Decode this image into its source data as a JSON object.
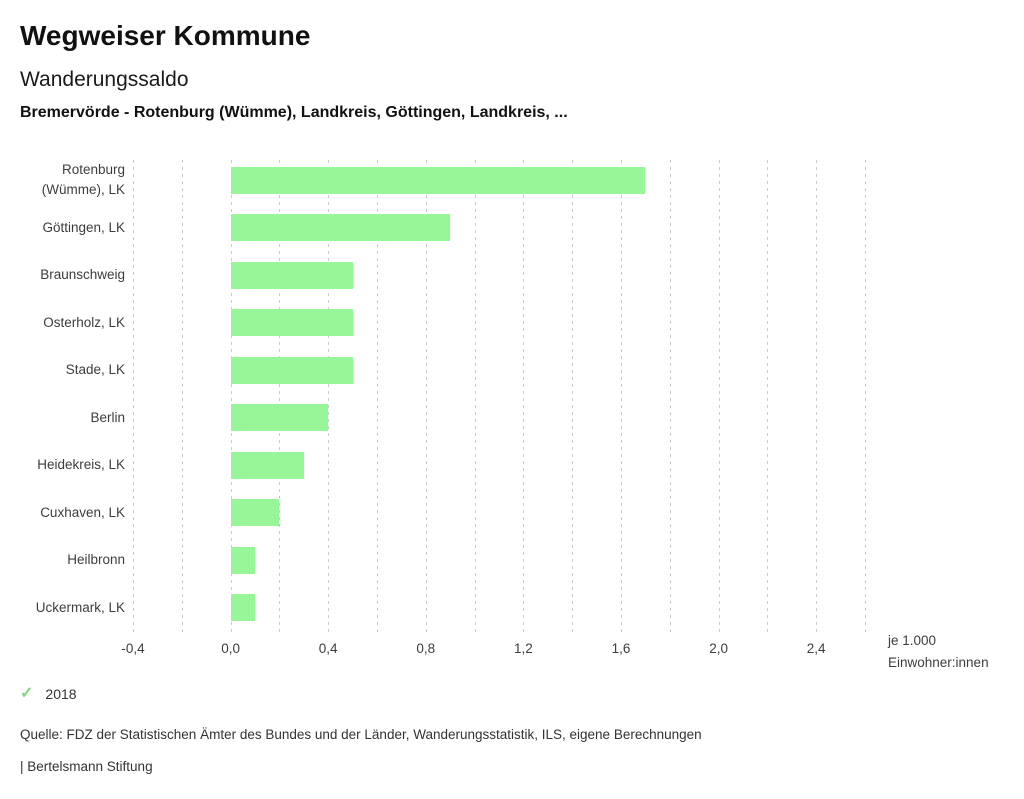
{
  "header": {
    "title": "Wegweiser Kommune",
    "indicator": "Wanderungssaldo",
    "regions": "Bremervörde - Rotenburg (Wümme), Landkreis, Göttingen, Landkreis, ..."
  },
  "chart_data": {
    "type": "bar",
    "orientation": "horizontal",
    "title": "Wanderungssaldo",
    "categories": [
      "Rotenburg (Wümme), LK",
      "Göttingen, LK",
      "Braunschweig",
      "Osterholz, LK",
      "Stade, LK",
      "Berlin",
      "Heidekreis, LK",
      "Cuxhaven, LK",
      "Heilbronn",
      "Uckermark, LK"
    ],
    "series": [
      {
        "name": "2018",
        "values": [
          1.7,
          0.9,
          0.5,
          0.5,
          0.5,
          0.4,
          0.3,
          0.2,
          0.1,
          0.1
        ]
      }
    ],
    "xlim": [
      -0.4,
      2.6
    ],
    "grid_interval": 0.2,
    "grid": true,
    "x_ticks": [
      -0.4,
      0.0,
      0.4,
      0.8,
      1.2,
      1.6,
      2.0,
      2.4
    ],
    "x_tick_labels": [
      "-0,4",
      "0,0",
      "0,4",
      "0,8",
      "1,2",
      "1,6",
      "2,0",
      "2,4"
    ],
    "unit_label": [
      "je 1.000",
      "Einwohner:innen"
    ],
    "legend_position": "bottom-left"
  },
  "legend": {
    "check_icon": "✓",
    "year": "2018"
  },
  "footer": {
    "source": "Quelle: FDZ der Statistischen Ämter des Bundes und der Länder, Wanderungsstatistik, ILS, eigene Berechnungen",
    "branding": "| Bertelsmann Stiftung"
  },
  "colors": {
    "bar": "#98f598",
    "check": "#7ed87e",
    "grid": "#c9c9c9"
  }
}
